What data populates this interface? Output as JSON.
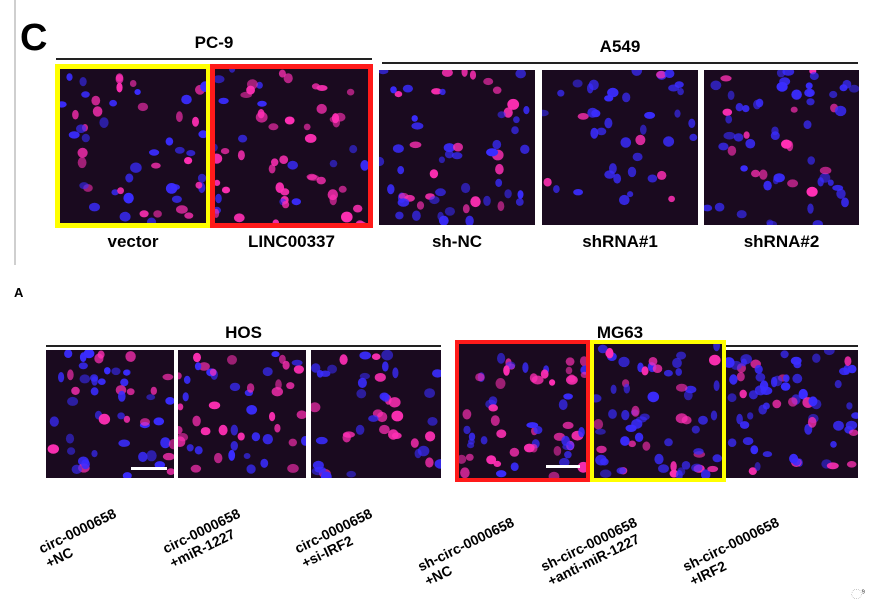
{
  "figure_c": {
    "panel_letter": "C",
    "groups": [
      {
        "label": "PC-9"
      },
      {
        "label": "A549"
      }
    ],
    "tiles": [
      {
        "caption": "vector",
        "highlight": "yellow",
        "density": 0.6,
        "pink": 0.45
      },
      {
        "caption": "LINC00337",
        "highlight": "red",
        "density": 0.7,
        "pink": 0.75
      },
      {
        "caption": "sh-NC",
        "highlight": "none",
        "density": 0.7,
        "pink": 0.35
      },
      {
        "caption": "shRNA#1",
        "highlight": "none",
        "density": 0.4,
        "pink": 0.1
      },
      {
        "caption": "shRNA#2",
        "highlight": "none",
        "density": 0.75,
        "pink": 0.2
      }
    ]
  },
  "figure_a": {
    "panel_letter": "A",
    "groups": [
      {
        "label": "HOS"
      },
      {
        "label": "MG63"
      }
    ],
    "tiles": [
      {
        "caption_lines": [
          "circ-0000658",
          "+NC"
        ],
        "highlight": "none",
        "density": 0.6,
        "pink": 0.3
      },
      {
        "caption_lines": [
          "circ-0000658",
          "+miR-1227"
        ],
        "highlight": "none",
        "density": 0.55,
        "pink": 0.5
      },
      {
        "caption_lines": [
          "circ-0000658",
          "+si-IRF2"
        ],
        "highlight": "none",
        "density": 0.45,
        "pink": 0.4
      },
      {
        "caption_lines": [
          "sh-circ-0000658",
          "+NC"
        ],
        "highlight": "red",
        "density": 0.75,
        "pink": 0.55
      },
      {
        "caption_lines": [
          "sh-circ-0000658",
          "+anti-miR-1227"
        ],
        "highlight": "yellow",
        "density": 0.85,
        "pink": 0.3
      },
      {
        "caption_lines": [
          "sh-circ-0000658",
          "+IRF2"
        ],
        "highlight": "none",
        "density": 0.85,
        "pink": 0.25
      }
    ]
  },
  "corner_mark": "ಿ",
  "colors": {
    "yellow_frame": "#ffff00",
    "red_frame": "#ff1a1a",
    "tile_bg": "#1a0a1f",
    "nucleus_blue": "#3a2cff",
    "nucleus_pink": "#ff2fb4"
  }
}
